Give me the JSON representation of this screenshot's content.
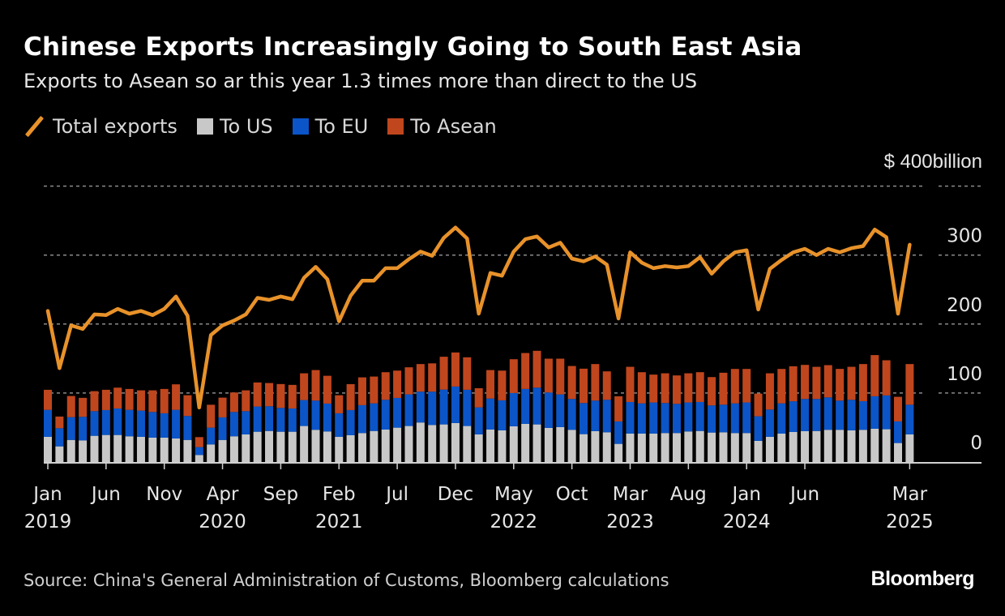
{
  "header": {
    "title": "Chinese Exports Increasingly Going to South East Asia",
    "subtitle": "Exports to Asean so ar this year 1.3 times more than direct to the US"
  },
  "legend": [
    {
      "label": "Total exports",
      "kind": "line",
      "color": "#E8922A"
    },
    {
      "label": "To US",
      "kind": "box",
      "color": "#C8C8C8"
    },
    {
      "label": "To EU",
      "kind": "box",
      "color": "#0B55C8"
    },
    {
      "label": "To Asean",
      "kind": "box",
      "color": "#C0461E"
    }
  ],
  "footer": {
    "source": "Source: China's General Administration of Customs, Bloomberg calculations",
    "brand": "Bloomberg"
  },
  "chart_data": {
    "type": "bar",
    "subtype": "stacked bar + line",
    "title": "Chinese Exports Increasingly Going to South East Asia",
    "subtitle": "Exports to Asean so ar this year 1.3 times more than direct to the US",
    "ylabel": "$ billion",
    "unit_label": "$ 400billion",
    "ylim": [
      0,
      400
    ],
    "yticks": [
      {
        "value": 0,
        "label": "0"
      },
      {
        "value": 100,
        "label": "100"
      },
      {
        "value": 200,
        "label": "200"
      },
      {
        "value": 300,
        "label": "300"
      },
      {
        "value": 400,
        "label": "$ 400billion"
      }
    ],
    "grid": true,
    "legend_position": "top-left",
    "x_start": "2019-01",
    "x_end": "2025-03",
    "frequency": "monthly",
    "xticks": [
      {
        "index": 0,
        "month": "Jan",
        "year": "2019"
      },
      {
        "index": 5,
        "month": "Jun",
        "year": ""
      },
      {
        "index": 10,
        "month": "Nov",
        "year": ""
      },
      {
        "index": 15,
        "month": "Apr",
        "year": "2020"
      },
      {
        "index": 20,
        "month": "Sep",
        "year": ""
      },
      {
        "index": 25,
        "month": "Feb",
        "year": "2021"
      },
      {
        "index": 30,
        "month": "Jul",
        "year": ""
      },
      {
        "index": 35,
        "month": "Dec",
        "year": ""
      },
      {
        "index": 40,
        "month": "May",
        "year": "2022"
      },
      {
        "index": 45,
        "month": "Oct",
        "year": ""
      },
      {
        "index": 50,
        "month": "Mar",
        "year": "2023"
      },
      {
        "index": 55,
        "month": "Aug",
        "year": ""
      },
      {
        "index": 60,
        "month": "Jan",
        "year": "2024"
      },
      {
        "index": 65,
        "month": "Jun",
        "year": ""
      },
      {
        "index": 74,
        "month": "Mar",
        "year": "2025"
      }
    ],
    "series": [
      {
        "name": "To US",
        "type": "bar",
        "stack": 0,
        "color": "#C8C8C8",
        "values": [
          36.5,
          22.7,
          32.0,
          31.4,
          38.0,
          39.2,
          39.2,
          37.3,
          36.5,
          35.3,
          35.3,
          34.1,
          32.0,
          10.2,
          25.5,
          32.0,
          37.3,
          40.0,
          43.9,
          45.0,
          43.9,
          43.9,
          52.2,
          46.7,
          44.3,
          36.5,
          38.8,
          42.0,
          45.0,
          47.0,
          49.8,
          52.2,
          57.3,
          53.7,
          54.5,
          56.5,
          52.2,
          40.0,
          47.0,
          45.9,
          51.8,
          55.3,
          54.5,
          49.4,
          50.6,
          46.7,
          40.4,
          44.7,
          43.1,
          26.3,
          41.2,
          41.2,
          41.2,
          42.0,
          42.0,
          44.3,
          45.0,
          42.7,
          43.1,
          42.0,
          42.0,
          30.6,
          36.5,
          41.2,
          43.5,
          44.7,
          45.0,
          46.7,
          46.7,
          45.9,
          46.7,
          48.2,
          47.5,
          27.5,
          40.0
        ]
      },
      {
        "name": "To EU",
        "type": "bar",
        "stack": 1,
        "color": "#0B55C8",
        "values": [
          39.1,
          26.3,
          33.0,
          34.1,
          35.7,
          36.1,
          38.4,
          38.3,
          38.0,
          37.2,
          35.3,
          41.5,
          34.7,
          11.4,
          24.3,
          32.7,
          35.2,
          33.7,
          36.5,
          35.8,
          34.5,
          33.7,
          37.6,
          42.3,
          40.4,
          34.1,
          36.5,
          40.4,
          40.0,
          43.2,
          43.1,
          45.8,
          44.7,
          48.3,
          50.5,
          52.9,
          52.5,
          39.2,
          45.0,
          43.5,
          48.2,
          50.6,
          53.3,
          51.4,
          47.4,
          44.7,
          45.1,
          44.3,
          47.1,
          32.5,
          45.8,
          43.8,
          45.1,
          43.5,
          42.3,
          42.0,
          42.0,
          39.3,
          40.0,
          43.0,
          44.3,
          35.7,
          39.5,
          43.8,
          44.5,
          46.7,
          46.4,
          47.0,
          42.3,
          44.3,
          41.5,
          47.1,
          49.0,
          31.3,
          43.0
        ]
      },
      {
        "name": "To Asean",
        "type": "bar",
        "stack": 2,
        "color": "#C0461E",
        "values": [
          29.1,
          16.9,
          30.7,
          27.5,
          29.0,
          29.4,
          30.2,
          30.3,
          29.4,
          31.4,
          35.3,
          37.0,
          30.1,
          14.5,
          33.2,
          28.6,
          28.3,
          30.2,
          34.9,
          33.7,
          34.6,
          34.2,
          38.8,
          44.3,
          40.3,
          26.2,
          37.6,
          40.3,
          38.9,
          40.0,
          39.6,
          39.3,
          40.0,
          41.0,
          47.6,
          49.4,
          47.1,
          27.8,
          41.3,
          43.1,
          49.0,
          52.1,
          53.4,
          49.0,
          51.8,
          47.8,
          49.8,
          53.0,
          41.2,
          36.5,
          51.0,
          45.2,
          40.4,
          43.1,
          41.2,
          42.3,
          43.2,
          41.1,
          46.3,
          49.9,
          48.6,
          32.9,
          52.6,
          49.9,
          50.8,
          49.4,
          46.6,
          46.7,
          46.0,
          47.8,
          53.8,
          59.7,
          51.0,
          35.7,
          59.0
        ]
      },
      {
        "name": "Total exports",
        "type": "line",
        "color": "#E8922A",
        "values": [
          219,
          136,
          198,
          193,
          214,
          213,
          222,
          215,
          219,
          213,
          222,
          240,
          212,
          79,
          184,
          198,
          205,
          214,
          238,
          235,
          240,
          236,
          267,
          283,
          265,
          204,
          241,
          263,
          263,
          281,
          281,
          294,
          305,
          299,
          325,
          340,
          324,
          215,
          274,
          270,
          305,
          323,
          327,
          311,
          318,
          295,
          291,
          298,
          286,
          208,
          304,
          289,
          281,
          284,
          282,
          284,
          297,
          273,
          291,
          304,
          307,
          221,
          280,
          293,
          304,
          309,
          300,
          309,
          304,
          310,
          313,
          337,
          326,
          215,
          315
        ]
      }
    ]
  }
}
